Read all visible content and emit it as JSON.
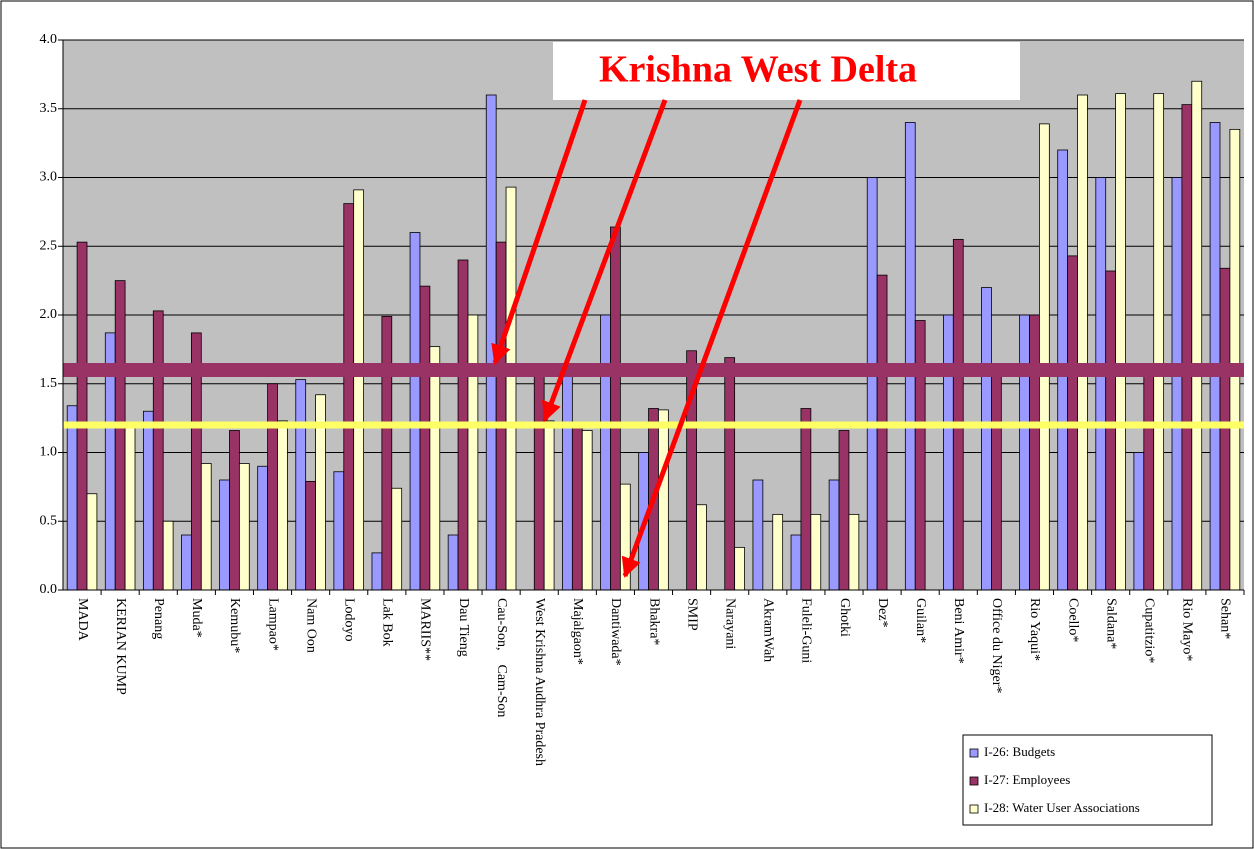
{
  "chart_data": {
    "type": "bar",
    "categories": [
      "MADA",
      "KERIAN KUMP",
      "Penang",
      "Muda*",
      "Kemubu*",
      "Lampao*",
      "Nam Oon",
      "Lodoyo",
      "Lak Bok",
      "MARIIS**",
      "Dau Tieng",
      "Cau-Son,    Cam-Son",
      "West Krishna Audhra Pradesh",
      "Majalgaon*",
      "Dantiwada*",
      "Bhakra*",
      "SMIP",
      "Narayani",
      "AkramWah",
      "Fuleli-Guni",
      "Ghotki",
      "Dez*",
      "Guilan*",
      "Beni Amir*",
      "Office du Niger*",
      "Rio Yaqui*",
      "Coello*",
      "Saldana*",
      "Cupatitzio*",
      "Rio Mayo*",
      "Sehan*"
    ],
    "series": [
      {
        "name": "I-26: Budgets",
        "color": "#9999ff",
        "values": [
          1.34,
          1.87,
          1.3,
          0.4,
          0.8,
          0.9,
          1.53,
          0.86,
          0.27,
          2.6,
          0.4,
          3.6,
          null,
          1.6,
          2.0,
          1.0,
          null,
          null,
          0.8,
          0.4,
          0.8,
          3.0,
          3.4,
          2.0,
          2.2,
          2.0,
          3.2,
          3.0,
          1.0,
          3.0,
          3.4
        ]
      },
      {
        "name": "I-27: Employees",
        "color": "#993366",
        "values": [
          2.53,
          2.25,
          2.03,
          1.87,
          1.16,
          1.5,
          0.79,
          2.81,
          1.99,
          2.21,
          2.4,
          2.53,
          1.6,
          1.2,
          2.64,
          1.32,
          1.74,
          1.69,
          null,
          1.32,
          1.16,
          2.29,
          1.96,
          2.55,
          1.6,
          2.0,
          2.43,
          2.32,
          1.6,
          3.53,
          2.34
        ]
      },
      {
        "name": "I-28: Water User Associations",
        "color": "#ffffcc",
        "values": [
          0.7,
          1.2,
          0.5,
          0.92,
          0.92,
          1.23,
          1.42,
          2.91,
          0.74,
          1.77,
          2.0,
          2.93,
          1.23,
          1.16,
          0.77,
          1.31,
          0.62,
          0.31,
          0.55,
          0.55,
          0.55,
          null,
          null,
          null,
          null,
          3.39,
          3.6,
          3.61,
          3.61,
          3.7,
          3.35
        ]
      }
    ],
    "ylim": [
      0,
      4
    ],
    "yticks": [
      {
        "value": 0,
        "label": "0.0"
      },
      {
        "value": 0.5,
        "label": "0.5"
      },
      {
        "value": 1,
        "label": "1.0"
      },
      {
        "value": 1.5,
        "label": "1.5"
      },
      {
        "value": 2,
        "label": "2.0"
      },
      {
        "value": 2.5,
        "label": "2.5"
      },
      {
        "value": 3,
        "label": "3.0"
      },
      {
        "value": 3.5,
        "label": "3.5"
      },
      {
        "value": 4,
        "label": "4.0"
      }
    ],
    "grid": true,
    "reference_lines": [
      {
        "value": 1.6,
        "color": "#993366"
      },
      {
        "value": 1.2,
        "color": "#ffff66"
      }
    ],
    "annotation": "Krishna West Delta",
    "legend": "lower right"
  }
}
